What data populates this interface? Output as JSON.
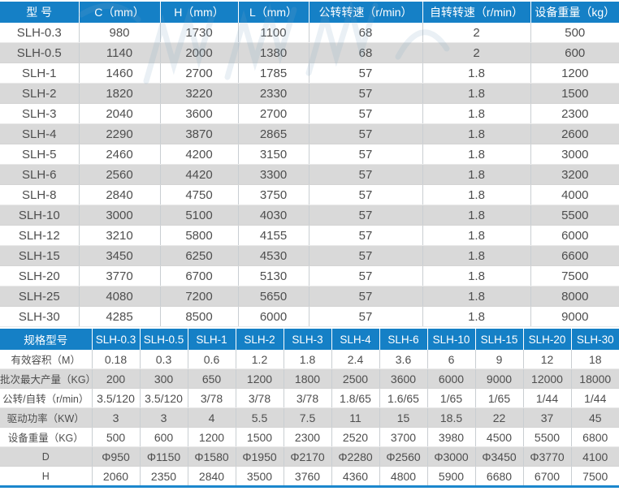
{
  "colors": {
    "header_bg": "#1580c6",
    "alt_row_bg": "#d9d9d9",
    "bottom_rule": "#1b87cd",
    "body_text": "#4e4e4e"
  },
  "table1": {
    "headers": [
      "型 号",
      "C（mm）",
      "H（mm）",
      "L（mm）",
      "公转转速（r/min）",
      "自转转速（r/min）",
      "设备重量（kg）"
    ],
    "rows": [
      [
        "SLH-0.3",
        "980",
        "1730",
        "1100",
        "68",
        "2",
        "500"
      ],
      [
        "SLH-0.5",
        "1140",
        "2000",
        "1380",
        "68",
        "2",
        "600"
      ],
      [
        "SLH-1",
        "1460",
        "2700",
        "1785",
        "57",
        "1.8",
        "1200"
      ],
      [
        "SLH-2",
        "1820",
        "3220",
        "2330",
        "57",
        "1.8",
        "1500"
      ],
      [
        "SLH-3",
        "2040",
        "3600",
        "2700",
        "57",
        "1.8",
        "2300"
      ],
      [
        "SLH-4",
        "2290",
        "3870",
        "2865",
        "57",
        "1.8",
        "2600"
      ],
      [
        "SLH-5",
        "2460",
        "4200",
        "3150",
        "57",
        "1.8",
        "3000"
      ],
      [
        "SLH-6",
        "2560",
        "4420",
        "3300",
        "57",
        "1.8",
        "3200"
      ],
      [
        "SLH-8",
        "2840",
        "4750",
        "3750",
        "57",
        "1.8",
        "4000"
      ],
      [
        "SLH-10",
        "3000",
        "5100",
        "4030",
        "57",
        "1.8",
        "5500"
      ],
      [
        "SLH-12",
        "3210",
        "5800",
        "4155",
        "57",
        "1.8",
        "6000"
      ],
      [
        "SLH-15",
        "3450",
        "6250",
        "4530",
        "57",
        "1.8",
        "6600"
      ],
      [
        "SLH-20",
        "3770",
        "6700",
        "5130",
        "57",
        "1.8",
        "7500"
      ],
      [
        "SLH-25",
        "4080",
        "7200",
        "5650",
        "57",
        "1.8",
        "8000"
      ],
      [
        "SLH-30",
        "4285",
        "8500",
        "6000",
        "57",
        "1.8",
        "9000"
      ]
    ]
  },
  "table2": {
    "headers": [
      "规格型号",
      "SLH-0.3",
      "SLH-0.5",
      "SLH-1",
      "SLH-2",
      "SLH-3",
      "SLH-4",
      "SLH-6",
      "SLH-10",
      "SLH-15",
      "SLH-20",
      "SLH-30"
    ],
    "rows": [
      [
        "有效容积（M）",
        "0.18",
        "0.3",
        "0.6",
        "1.2",
        "1.8",
        "2.4",
        "3.6",
        "6",
        "9",
        "12",
        "18"
      ],
      [
        "批次最大产量（KG）",
        "200",
        "300",
        "650",
        "1200",
        "1800",
        "2500",
        "3600",
        "6000",
        "9000",
        "12000",
        "18000"
      ],
      [
        "公转/自转（r/min）",
        "3.5/120",
        "3.5/120",
        "3/78",
        "3/78",
        "3/78",
        "1.8/65",
        "1.6/65",
        "1/65",
        "1/65",
        "1/44",
        "1/44"
      ],
      [
        "驱动功率（KW）",
        "3",
        "3",
        "4",
        "5.5",
        "7.5",
        "11",
        "15",
        "18.5",
        "22",
        "37",
        "45"
      ],
      [
        "设备重量（KG）",
        "500",
        "600",
        "1200",
        "1500",
        "2300",
        "2520",
        "3700",
        "3980",
        "4500",
        "5500",
        "6800"
      ],
      [
        "D",
        "Φ950",
        "Φ1150",
        "Φ1580",
        "Φ1950",
        "Φ2170",
        "Φ2280",
        "Φ2560",
        "Φ3000",
        "Φ3450",
        "Φ3770",
        "4100"
      ],
      [
        "H",
        "2060",
        "2350",
        "2840",
        "3500",
        "3760",
        "4360",
        "4800",
        "5900",
        "6680",
        "6700",
        "7500"
      ]
    ]
  }
}
